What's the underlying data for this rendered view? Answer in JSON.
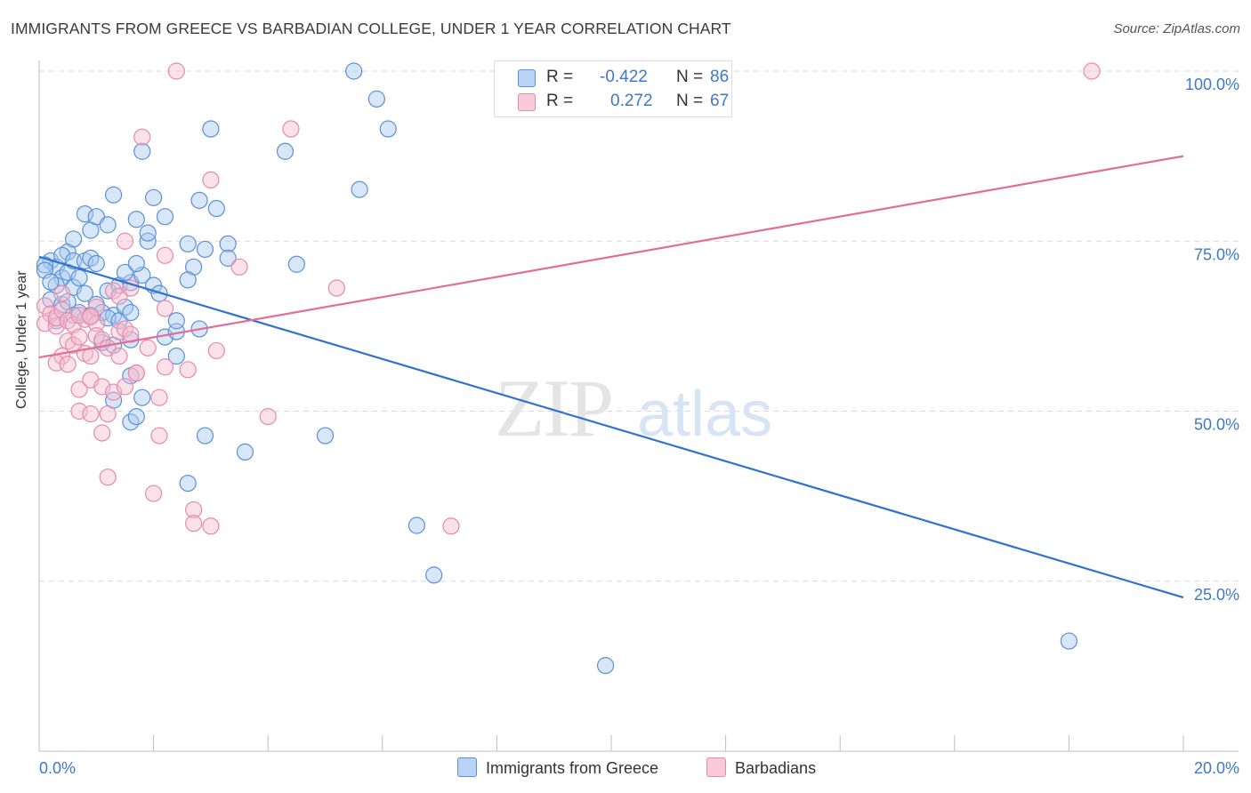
{
  "title": "IMMIGRANTS FROM GREECE VS BARBADIAN COLLEGE, UNDER 1 YEAR CORRELATION CHART",
  "source": "Source: ZipAtlas.com",
  "watermark": {
    "zip": "ZIP",
    "atlas": "atlas"
  },
  "colors": {
    "blue_fill": "#a9c9f0",
    "blue_stroke": "#5b8fd6",
    "blue_line": "#2f72d2",
    "pink_fill": "#f6bdd0",
    "pink_stroke": "#e68aaa",
    "pink_line": "#e46d98",
    "tick_text": "#3d78c9",
    "grid": "#d9d9d9"
  },
  "legend": {
    "r_label": "R =",
    "n_label": "N =",
    "series": [
      {
        "r": "-0.422",
        "n": "86"
      },
      {
        "r": "0.272",
        "n": "67"
      }
    ]
  },
  "chart_data": {
    "type": "scatter",
    "title": "IMMIGRANTS FROM GREECE VS BARBADIAN COLLEGE, UNDER 1 YEAR CORRELATION CHART",
    "xlabel": "",
    "ylabel": "College, Under 1 year",
    "xlim": [
      0,
      20
    ],
    "ylim": [
      0,
      102
    ],
    "x_tick_labels": [
      "0.0%",
      "20.0%"
    ],
    "y_ticks": [
      25,
      50,
      75,
      100
    ],
    "y_tick_labels": [
      "25.0%",
      "50.0%",
      "75.0%",
      "100.0%"
    ],
    "grid": true,
    "legend_position": "bottom-center",
    "series": [
      {
        "name": "Immigrants from Greece",
        "r": -0.422,
        "n": 86,
        "trend": {
          "x": [
            0,
            20
          ],
          "y": [
            72.7,
            22.6
          ]
        },
        "points": [
          [
            0.2,
            72.1
          ],
          [
            0.3,
            71.2
          ],
          [
            0.4,
            69.6
          ],
          [
            0.5,
            70.4
          ],
          [
            0.3,
            68.5
          ],
          [
            0.5,
            73.4
          ],
          [
            0.4,
            72.9
          ],
          [
            0.1,
            71.5
          ],
          [
            0.1,
            70.7
          ],
          [
            0.2,
            69.0
          ],
          [
            0.6,
            68.2
          ],
          [
            0.7,
            69.6
          ],
          [
            0.6,
            72.1
          ],
          [
            0.8,
            72.1
          ],
          [
            0.9,
            72.5
          ],
          [
            1.0,
            71.7
          ],
          [
            0.2,
            66.4
          ],
          [
            0.4,
            65.7
          ],
          [
            0.5,
            66.1
          ],
          [
            0.3,
            63.3
          ],
          [
            0.7,
            64.5
          ],
          [
            0.6,
            64.1
          ],
          [
            0.8,
            67.3
          ],
          [
            1.0,
            65.7
          ],
          [
            0.9,
            64.1
          ],
          [
            1.1,
            64.5
          ],
          [
            1.3,
            64.1
          ],
          [
            1.2,
            63.7
          ],
          [
            1.4,
            63.3
          ],
          [
            1.5,
            65.3
          ],
          [
            1.6,
            64.5
          ],
          [
            1.2,
            67.7
          ],
          [
            1.4,
            68.5
          ],
          [
            1.6,
            68.9
          ],
          [
            1.8,
            70.0
          ],
          [
            2.0,
            68.5
          ],
          [
            2.1,
            67.3
          ],
          [
            1.5,
            70.4
          ],
          [
            1.7,
            71.7
          ],
          [
            1.1,
            60.1
          ],
          [
            1.3,
            59.7
          ],
          [
            1.6,
            60.5
          ],
          [
            2.2,
            60.9
          ],
          [
            2.4,
            61.7
          ],
          [
            2.4,
            63.3
          ],
          [
            2.4,
            58.1
          ],
          [
            2.8,
            62.1
          ],
          [
            1.3,
            51.6
          ],
          [
            1.6,
            48.4
          ],
          [
            1.7,
            49.2
          ],
          [
            1.6,
            55.2
          ],
          [
            1.8,
            52.0
          ],
          [
            0.6,
            75.3
          ],
          [
            0.8,
            79.0
          ],
          [
            0.9,
            76.6
          ],
          [
            1.0,
            78.6
          ],
          [
            1.2,
            77.4
          ],
          [
            1.3,
            81.8
          ],
          [
            1.7,
            78.2
          ],
          [
            1.9,
            75.0
          ],
          [
            1.9,
            76.2
          ],
          [
            2.2,
            78.6
          ],
          [
            2.0,
            81.4
          ],
          [
            2.6,
            74.6
          ],
          [
            2.7,
            71.2
          ],
          [
            2.6,
            69.3
          ],
          [
            2.8,
            81.0
          ],
          [
            3.1,
            79.8
          ],
          [
            3.3,
            74.6
          ],
          [
            3.3,
            72.5
          ],
          [
            2.9,
            73.8
          ],
          [
            1.8,
            88.2
          ],
          [
            3.0,
            91.5
          ],
          [
            4.3,
            88.2
          ],
          [
            5.6,
            82.6
          ],
          [
            4.5,
            71.6
          ],
          [
            5.0,
            46.4
          ],
          [
            5.5,
            100.0
          ],
          [
            5.9,
            95.9
          ],
          [
            6.1,
            91.5
          ],
          [
            2.9,
            46.4
          ],
          [
            2.6,
            39.4
          ],
          [
            3.6,
            44.0
          ],
          [
            6.6,
            33.2
          ],
          [
            6.9,
            25.9
          ],
          [
            9.9,
            12.6
          ],
          [
            18.0,
            16.2
          ]
        ]
      },
      {
        "name": "Barbadians",
        "r": 0.272,
        "n": 67,
        "trend": {
          "x": [
            0,
            20
          ],
          "y": [
            57.9,
            87.5
          ]
        },
        "points": [
          [
            0.1,
            65.5
          ],
          [
            0.2,
            64.3
          ],
          [
            0.1,
            62.9
          ],
          [
            0.3,
            62.5
          ],
          [
            0.3,
            63.7
          ],
          [
            0.4,
            64.9
          ],
          [
            0.5,
            63.3
          ],
          [
            0.6,
            62.7
          ],
          [
            0.8,
            63.5
          ],
          [
            0.7,
            64.1
          ],
          [
            0.9,
            63.9
          ],
          [
            1.0,
            62.9
          ],
          [
            0.5,
            60.3
          ],
          [
            0.4,
            58.1
          ],
          [
            0.3,
            57.1
          ],
          [
            0.5,
            56.9
          ],
          [
            0.6,
            59.7
          ],
          [
            0.8,
            58.5
          ],
          [
            0.9,
            58.1
          ],
          [
            1.0,
            61.1
          ],
          [
            1.1,
            60.5
          ],
          [
            1.2,
            59.3
          ],
          [
            1.4,
            61.7
          ],
          [
            1.5,
            62.1
          ],
          [
            1.6,
            61.3
          ],
          [
            1.4,
            58.1
          ],
          [
            1.7,
            55.6
          ],
          [
            1.9,
            59.3
          ],
          [
            2.2,
            56.5
          ],
          [
            2.1,
            52.0
          ],
          [
            2.2,
            65.1
          ],
          [
            2.2,
            72.9
          ],
          [
            2.6,
            56.1
          ],
          [
            3.1,
            58.9
          ],
          [
            0.7,
            53.2
          ],
          [
            0.9,
            54.6
          ],
          [
            1.1,
            53.6
          ],
          [
            1.3,
            52.8
          ],
          [
            1.5,
            53.6
          ],
          [
            1.7,
            55.6
          ],
          [
            0.7,
            50.0
          ],
          [
            0.9,
            49.6
          ],
          [
            1.2,
            49.6
          ],
          [
            1.1,
            46.8
          ],
          [
            2.1,
            46.4
          ],
          [
            1.2,
            40.3
          ],
          [
            2.0,
            37.9
          ],
          [
            2.7,
            35.5
          ],
          [
            2.7,
            33.5
          ],
          [
            3.0,
            33.1
          ],
          [
            4.0,
            49.2
          ],
          [
            7.2,
            33.1
          ],
          [
            5.2,
            68.1
          ],
          [
            3.5,
            71.2
          ],
          [
            1.5,
            75.0
          ],
          [
            1.8,
            90.3
          ],
          [
            2.4,
            100.0
          ],
          [
            3.0,
            84.0
          ],
          [
            4.4,
            91.5
          ],
          [
            18.4,
            100.0
          ],
          [
            1.3,
            67.7
          ],
          [
            1.4,
            66.9
          ],
          [
            1.6,
            68.1
          ],
          [
            0.4,
            67.3
          ],
          [
            1.0,
            65.3
          ],
          [
            0.9,
            63.9
          ],
          [
            0.7,
            60.9
          ]
        ]
      }
    ]
  }
}
